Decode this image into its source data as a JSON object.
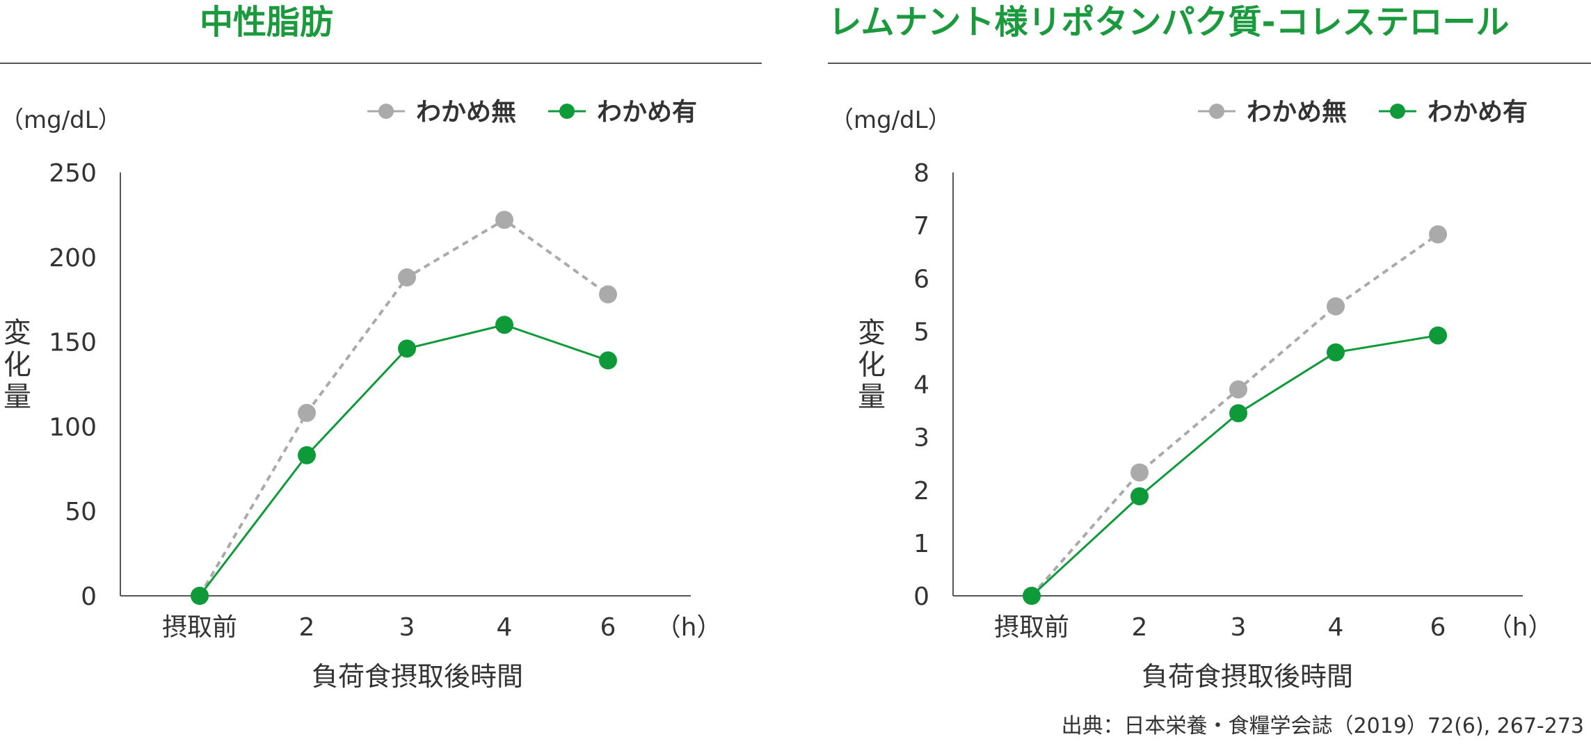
{
  "colors": {
    "title": "#1a9a3c",
    "green": "#0f9a3a",
    "gray": "#aaaaaa",
    "axis": "#555555",
    "text": "#333333"
  },
  "legend": {
    "without": "わかめ無",
    "with": "わかめ有"
  },
  "source": "出典：日本栄養・食糧学会誌（2019）72(6), 267-273",
  "chart_data": [
    {
      "type": "line",
      "title": "中性脂肪",
      "unit": "（mg/dL）",
      "ylabel": "変化量",
      "xlabel": "負荷食摂取後時間",
      "x_unit": "（h）",
      "categories": [
        "摂取前",
        "2",
        "3",
        "4",
        "6"
      ],
      "ylim": [
        0,
        250
      ],
      "yticks": [
        0,
        50,
        100,
        150,
        200,
        250
      ],
      "legend_position": "top-right",
      "series": [
        {
          "name": "わかめ無",
          "color": "#aaaaaa",
          "dashed": true,
          "values": [
            0,
            108,
            188,
            222,
            178
          ]
        },
        {
          "name": "わかめ有",
          "color": "#0f9a3a",
          "dashed": false,
          "values": [
            0,
            83,
            146,
            160,
            139
          ]
        }
      ]
    },
    {
      "type": "line",
      "title": "レムナント様リポタンパク質-コレステロール",
      "unit": "（mg/dL）",
      "ylabel": "変化量",
      "xlabel": "負荷食摂取後時間",
      "x_unit": "（h）",
      "categories": [
        "摂取前",
        "2",
        "3",
        "4",
        "6"
      ],
      "ylim": [
        0,
        8
      ],
      "yticks": [
        0,
        1,
        2,
        3,
        4,
        5,
        6,
        7,
        8
      ],
      "legend_position": "top-right",
      "series": [
        {
          "name": "わかめ無",
          "color": "#aaaaaa",
          "dashed": true,
          "values": [
            0,
            2.33,
            3.9,
            5.47,
            6.83
          ]
        },
        {
          "name": "わかめ有",
          "color": "#0f9a3a",
          "dashed": false,
          "values": [
            0,
            1.88,
            3.45,
            4.6,
            4.92
          ]
        }
      ]
    }
  ]
}
